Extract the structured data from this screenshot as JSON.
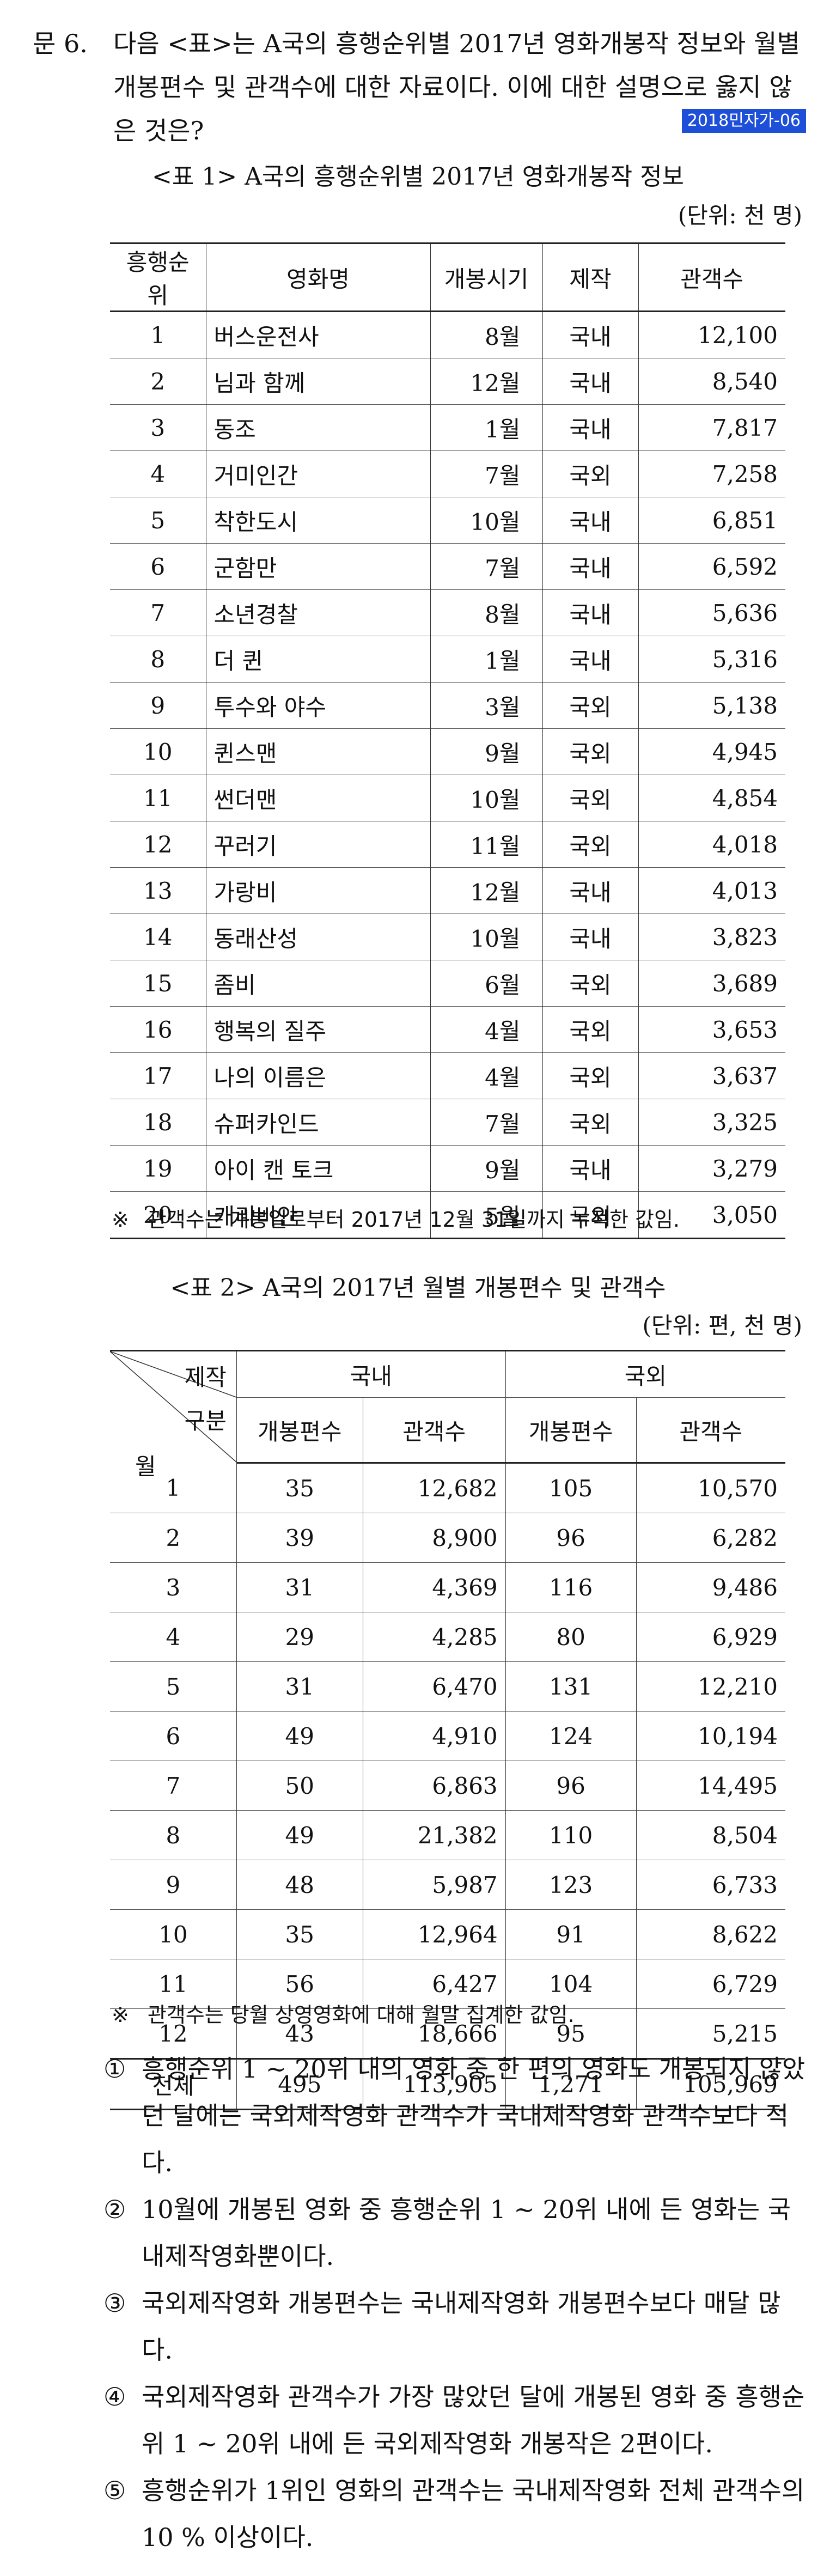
{
  "question": {
    "number": "문  6.",
    "text": "다음 <표>는 A국의 흥행순위별 2017년 영화개봉작 정보와 월별 개봉편수 및 관객수에 대한 자료이다. 이에 대한 설명으로 옳지 않은 것은?",
    "tag": "2018민자가-06"
  },
  "table1": {
    "title": "<표 1> A국의 흥행순위별 2017년 영화개봉작 정보",
    "unit": "(단위: 천 명)",
    "headers": [
      "흥행순위",
      "영화명",
      "개봉시기",
      "제작",
      "관객수"
    ],
    "rows": [
      [
        "1",
        "버스운전사",
        "8월",
        "국내",
        "12,100"
      ],
      [
        "2",
        "님과 함께",
        "12월",
        "국내",
        "8,540"
      ],
      [
        "3",
        "동조",
        "1월",
        "국내",
        "7,817"
      ],
      [
        "4",
        "거미인간",
        "7월",
        "국외",
        "7,258"
      ],
      [
        "5",
        "착한도시",
        "10월",
        "국내",
        "6,851"
      ],
      [
        "6",
        "군함만",
        "7월",
        "국내",
        "6,592"
      ],
      [
        "7",
        "소년경찰",
        "8월",
        "국내",
        "5,636"
      ],
      [
        "8",
        "더 퀸",
        "1월",
        "국내",
        "5,316"
      ],
      [
        "9",
        "투수와 야수",
        "3월",
        "국외",
        "5,138"
      ],
      [
        "10",
        "퀸스맨",
        "9월",
        "국외",
        "4,945"
      ],
      [
        "11",
        "썬더맨",
        "10월",
        "국외",
        "4,854"
      ],
      [
        "12",
        "꾸러기",
        "11월",
        "국외",
        "4,018"
      ],
      [
        "13",
        "가랑비",
        "12월",
        "국내",
        "4,013"
      ],
      [
        "14",
        "동래산성",
        "10월",
        "국내",
        "3,823"
      ],
      [
        "15",
        "좀비",
        "6월",
        "국외",
        "3,689"
      ],
      [
        "16",
        "행복의 질주",
        "4월",
        "국외",
        "3,653"
      ],
      [
        "17",
        "나의 이름은",
        "4월",
        "국외",
        "3,637"
      ],
      [
        "18",
        "슈퍼카인드",
        "7월",
        "국외",
        "3,325"
      ],
      [
        "19",
        "아이 캔 토크",
        "9월",
        "국내",
        "3,279"
      ],
      [
        "20",
        "캐리비안",
        "5월",
        "국외",
        "3,050"
      ]
    ],
    "note_mark": "※",
    "note": "관객수는 개봉일로부터 2017년 12월 31일까지 누적한 값임."
  },
  "table2": {
    "title": "<표 2> A국의 2017년 월별 개봉편수 및 관객수",
    "unit": "(단위: 편, 천 명)",
    "corner_top": "제작",
    "corner_mid": "구분",
    "corner_bottom": "월",
    "group_domestic": "국내",
    "group_foreign": "국외",
    "sub_headers": [
      "개봉편수",
      "관객수",
      "개봉편수",
      "관객수"
    ],
    "rows": [
      [
        "1",
        "35",
        "12,682",
        "105",
        "10,570"
      ],
      [
        "2",
        "39",
        "8,900",
        "96",
        "6,282"
      ],
      [
        "3",
        "31",
        "4,369",
        "116",
        "9,486"
      ],
      [
        "4",
        "29",
        "4,285",
        "80",
        "6,929"
      ],
      [
        "5",
        "31",
        "6,470",
        "131",
        "12,210"
      ],
      [
        "6",
        "49",
        "4,910",
        "124",
        "10,194"
      ],
      [
        "7",
        "50",
        "6,863",
        "96",
        "14,495"
      ],
      [
        "8",
        "49",
        "21,382",
        "110",
        "8,504"
      ],
      [
        "9",
        "48",
        "5,987",
        "123",
        "6,733"
      ],
      [
        "10",
        "35",
        "12,964",
        "91",
        "8,622"
      ],
      [
        "11",
        "56",
        "6,427",
        "104",
        "6,729"
      ],
      [
        "12",
        "43",
        "18,666",
        "95",
        "5,215"
      ]
    ],
    "total_row": [
      "전체",
      "495",
      "113,905",
      "1,271",
      "105,969"
    ],
    "note_mark": "※",
    "note": "관객수는 당월 상영영화에 대해 월말 집계한 값임."
  },
  "choices": [
    {
      "mark": "①",
      "text": "흥행순위 1 ~ 20위 내의 영화 중 한 편의 영화도 개봉되지 않았던 달에는 국외제작영화 관객수가 국내제작영화 관객수보다 적다."
    },
    {
      "mark": "②",
      "text": "10월에 개봉된 영화 중 흥행순위 1 ~ 20위 내에 든 영화는 국내제작영화뿐이다."
    },
    {
      "mark": "③",
      "text": "국외제작영화 개봉편수는 국내제작영화 개봉편수보다 매달 많다."
    },
    {
      "mark": "④",
      "text": "국외제작영화 관객수가 가장 많았던 달에 개봉된 영화 중 흥행순위 1 ~ 20위 내에 든 국외제작영화 개봉작은 2편이다."
    },
    {
      "mark": "⑤",
      "text": "흥행순위가 1위인 영화의 관객수는 국내제작영화 전체 관객수의 10 % 이상이다."
    }
  ]
}
